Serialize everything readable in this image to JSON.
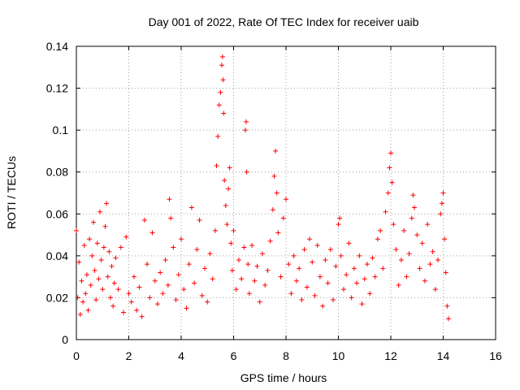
{
  "chart_data": {
    "type": "scatter",
    "title": "Day 001 of 2022, Rate Of TEC Index for receiver uaib",
    "xlabel": "GPS time / hours",
    "ylabel": "ROTI / TECUs",
    "xlim": [
      0,
      16
    ],
    "ylim": [
      0,
      0.14
    ],
    "x_ticks": [
      "0",
      "2",
      "4",
      "6",
      "8",
      "10",
      "12",
      "14",
      "16"
    ],
    "y_ticks": [
      "0",
      "0.02",
      "0.04",
      "0.06",
      "0.08",
      "0.1",
      "0.12",
      "0.14"
    ],
    "grid": true,
    "marker": "+",
    "marker_color": "#ff0000",
    "series": [
      {
        "points": [
          [
            0.0,
            0.052
          ],
          [
            0.05,
            0.02
          ],
          [
            0.1,
            0.037
          ],
          [
            0.15,
            0.012
          ],
          [
            0.2,
            0.028
          ],
          [
            0.25,
            0.018
          ],
          [
            0.3,
            0.045
          ],
          [
            0.35,
            0.022
          ],
          [
            0.4,
            0.031
          ],
          [
            0.45,
            0.014
          ],
          [
            0.5,
            0.048
          ],
          [
            0.55,
            0.026
          ],
          [
            0.6,
            0.04
          ],
          [
            0.65,
            0.056
          ],
          [
            0.7,
            0.033
          ],
          [
            0.75,
            0.019
          ],
          [
            0.8,
            0.046
          ],
          [
            0.85,
            0.029
          ],
          [
            0.9,
            0.061
          ],
          [
            0.95,
            0.038
          ],
          [
            1.0,
            0.024
          ],
          [
            1.05,
            0.044
          ],
          [
            1.1,
            0.054
          ],
          [
            1.15,
            0.065
          ],
          [
            1.2,
            0.03
          ],
          [
            1.25,
            0.042
          ],
          [
            1.3,
            0.02
          ],
          [
            1.35,
            0.035
          ],
          [
            1.4,
            0.016
          ],
          [
            1.45,
            0.027
          ],
          [
            1.5,
            0.039
          ],
          [
            1.6,
            0.024
          ],
          [
            1.7,
            0.044
          ],
          [
            1.8,
            0.013
          ],
          [
            1.9,
            0.049
          ],
          [
            2.0,
            0.022
          ],
          [
            2.1,
            0.018
          ],
          [
            2.2,
            0.03
          ],
          [
            2.3,
            0.014
          ],
          [
            2.4,
            0.025
          ],
          [
            2.5,
            0.011
          ],
          [
            2.6,
            0.057
          ],
          [
            2.7,
            0.036
          ],
          [
            2.8,
            0.02
          ],
          [
            2.9,
            0.051
          ],
          [
            3.0,
            0.028
          ],
          [
            3.1,
            0.017
          ],
          [
            3.2,
            0.032
          ],
          [
            3.3,
            0.022
          ],
          [
            3.4,
            0.038
          ],
          [
            3.5,
            0.026
          ],
          [
            3.55,
            0.067
          ],
          [
            3.6,
            0.058
          ],
          [
            3.7,
            0.044
          ],
          [
            3.8,
            0.019
          ],
          [
            3.9,
            0.031
          ],
          [
            4.0,
            0.048
          ],
          [
            4.1,
            0.024
          ],
          [
            4.2,
            0.015
          ],
          [
            4.3,
            0.036
          ],
          [
            4.4,
            0.063
          ],
          [
            4.5,
            0.027
          ],
          [
            4.6,
            0.043
          ],
          [
            4.7,
            0.057
          ],
          [
            4.8,
            0.021
          ],
          [
            4.9,
            0.034
          ],
          [
            5.0,
            0.018
          ],
          [
            5.1,
            0.041
          ],
          [
            5.2,
            0.029
          ],
          [
            5.3,
            0.052
          ],
          [
            5.35,
            0.083
          ],
          [
            5.4,
            0.097
          ],
          [
            5.45,
            0.112
          ],
          [
            5.5,
            0.118
          ],
          [
            5.55,
            0.131
          ],
          [
            5.58,
            0.135
          ],
          [
            5.6,
            0.124
          ],
          [
            5.62,
            0.108
          ],
          [
            5.65,
            0.076
          ],
          [
            5.7,
            0.064
          ],
          [
            5.75,
            0.055
          ],
          [
            5.8,
            0.072
          ],
          [
            5.85,
            0.082
          ],
          [
            5.9,
            0.046
          ],
          [
            5.95,
            0.033
          ],
          [
            6.0,
            0.052
          ],
          [
            6.1,
            0.024
          ],
          [
            6.2,
            0.038
          ],
          [
            6.3,
            0.029
          ],
          [
            6.4,
            0.044
          ],
          [
            6.45,
            0.1
          ],
          [
            6.48,
            0.104
          ],
          [
            6.5,
            0.08
          ],
          [
            6.55,
            0.036
          ],
          [
            6.6,
            0.022
          ],
          [
            6.7,
            0.045
          ],
          [
            6.8,
            0.028
          ],
          [
            6.9,
            0.035
          ],
          [
            7.0,
            0.018
          ],
          [
            7.1,
            0.041
          ],
          [
            7.2,
            0.026
          ],
          [
            7.3,
            0.033
          ],
          [
            7.4,
            0.047
          ],
          [
            7.5,
            0.062
          ],
          [
            7.55,
            0.078
          ],
          [
            7.6,
            0.09
          ],
          [
            7.65,
            0.07
          ],
          [
            7.7,
            0.051
          ],
          [
            7.8,
            0.03
          ],
          [
            7.9,
            0.058
          ],
          [
            8.0,
            0.067
          ],
          [
            8.1,
            0.036
          ],
          [
            8.2,
            0.022
          ],
          [
            8.3,
            0.04
          ],
          [
            8.4,
            0.028
          ],
          [
            8.5,
            0.034
          ],
          [
            8.6,
            0.019
          ],
          [
            8.7,
            0.043
          ],
          [
            8.8,
            0.025
          ],
          [
            8.9,
            0.048
          ],
          [
            9.0,
            0.037
          ],
          [
            9.1,
            0.021
          ],
          [
            9.2,
            0.045
          ],
          [
            9.3,
            0.03
          ],
          [
            9.4,
            0.016
          ],
          [
            9.5,
            0.038
          ],
          [
            9.6,
            0.027
          ],
          [
            9.7,
            0.043
          ],
          [
            9.8,
            0.019
          ],
          [
            9.9,
            0.035
          ],
          [
            10.0,
            0.055
          ],
          [
            10.05,
            0.058
          ],
          [
            10.1,
            0.04
          ],
          [
            10.2,
            0.024
          ],
          [
            10.3,
            0.031
          ],
          [
            10.4,
            0.046
          ],
          [
            10.5,
            0.02
          ],
          [
            10.6,
            0.034
          ],
          [
            10.7,
            0.027
          ],
          [
            10.8,
            0.04
          ],
          [
            10.9,
            0.017
          ],
          [
            11.0,
            0.029
          ],
          [
            11.1,
            0.036
          ],
          [
            11.2,
            0.022
          ],
          [
            11.3,
            0.039
          ],
          [
            11.4,
            0.03
          ],
          [
            11.5,
            0.048
          ],
          [
            11.6,
            0.052
          ],
          [
            11.7,
            0.034
          ],
          [
            11.8,
            0.061
          ],
          [
            11.9,
            0.07
          ],
          [
            11.95,
            0.082
          ],
          [
            12.0,
            0.089
          ],
          [
            12.05,
            0.075
          ],
          [
            12.1,
            0.055
          ],
          [
            12.2,
            0.043
          ],
          [
            12.3,
            0.026
          ],
          [
            12.4,
            0.038
          ],
          [
            12.5,
            0.052
          ],
          [
            12.6,
            0.03
          ],
          [
            12.7,
            0.041
          ],
          [
            12.8,
            0.058
          ],
          [
            12.85,
            0.069
          ],
          [
            12.9,
            0.063
          ],
          [
            13.0,
            0.05
          ],
          [
            13.1,
            0.034
          ],
          [
            13.2,
            0.046
          ],
          [
            13.3,
            0.028
          ],
          [
            13.4,
            0.055
          ],
          [
            13.5,
            0.036
          ],
          [
            13.6,
            0.042
          ],
          [
            13.7,
            0.024
          ],
          [
            13.8,
            0.038
          ],
          [
            13.9,
            0.06
          ],
          [
            13.95,
            0.065
          ],
          [
            14.0,
            0.07
          ],
          [
            14.05,
            0.048
          ],
          [
            14.1,
            0.032
          ],
          [
            14.15,
            0.016
          ],
          [
            14.2,
            0.01
          ]
        ]
      }
    ]
  }
}
